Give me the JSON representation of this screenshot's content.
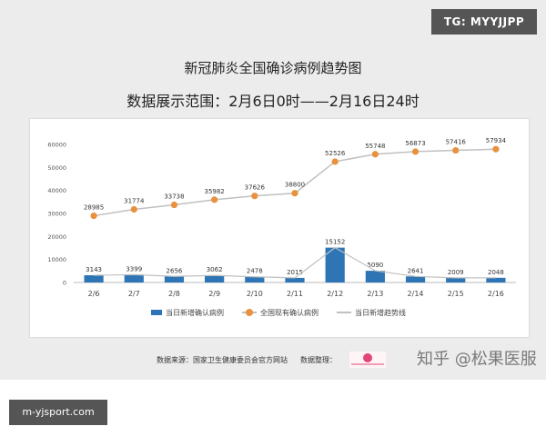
{
  "badges": {
    "tg": "TG: MYYJJPP",
    "site": "m-yjsport.com"
  },
  "watermark": "知乎 @松果医服",
  "source": {
    "data_source": "数据来源：国家卫生健康委员会官方网站",
    "arranged_by": "数据整理：",
    "logo_text": "松果医服"
  },
  "colors": {
    "bar": "#2e75b6",
    "line": "#c0c0c0",
    "marker": "#e8913e"
  },
  "chart_data": {
    "type": "bar",
    "title": "新冠肺炎全国确诊病例趋势图",
    "subtitle": "数据展示范围：2月6日0时——2月16日24时",
    "categories": [
      "2/6",
      "2/7",
      "2/8",
      "2/9",
      "2/10",
      "2/11",
      "2/12",
      "2/13",
      "2/14",
      "2/15",
      "2/16"
    ],
    "ylim": [
      0,
      60000
    ],
    "yticks": [
      0,
      10000,
      20000,
      30000,
      40000,
      50000,
      60000
    ],
    "grid": false,
    "legend_position": "bottom",
    "series": [
      {
        "name": "当日新增确认病例",
        "kind": "bar",
        "values": [
          3143,
          3399,
          2656,
          3062,
          2478,
          2015,
          15152,
          5090,
          2641,
          2009,
          2048
        ]
      },
      {
        "name": "全国现有确认病例",
        "kind": "line-marker",
        "values": [
          28985,
          31774,
          33738,
          35982,
          37626,
          38800,
          52526,
          55748,
          56873,
          57416,
          57934
        ]
      },
      {
        "name": "当日新增趋势线",
        "kind": "line",
        "values": [
          3143,
          3399,
          2656,
          3062,
          2478,
          2015,
          15152,
          5090,
          2641,
          2009,
          2048
        ]
      }
    ]
  }
}
